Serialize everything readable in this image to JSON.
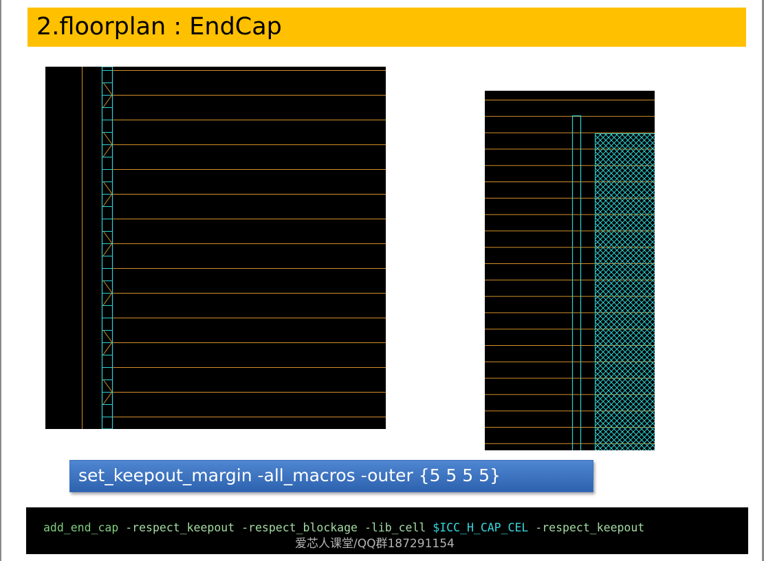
{
  "slide": {
    "title": "2.floorplan : EndCap"
  },
  "layout_view": {
    "row_line_color": "#d4902a",
    "endcap_color": "#2fd2d6",
    "keepout_hatch_color": "#2fd2d6"
  },
  "keepout_command": {
    "text": "set_keepout_margin -all_macros -outer {5 5 5 5}",
    "background": "#3b78c8"
  },
  "terminal": {
    "cmd": "add_end_cap",
    "opt1": "-respect_keepout",
    "opt2": "-respect_blockage",
    "opt3": "-lib_cell",
    "var": "$ICC_H_CAP_CEL",
    "opt4": "-respect_keepout",
    "watermark": "爱芯人课堂/QQ群187291154"
  }
}
